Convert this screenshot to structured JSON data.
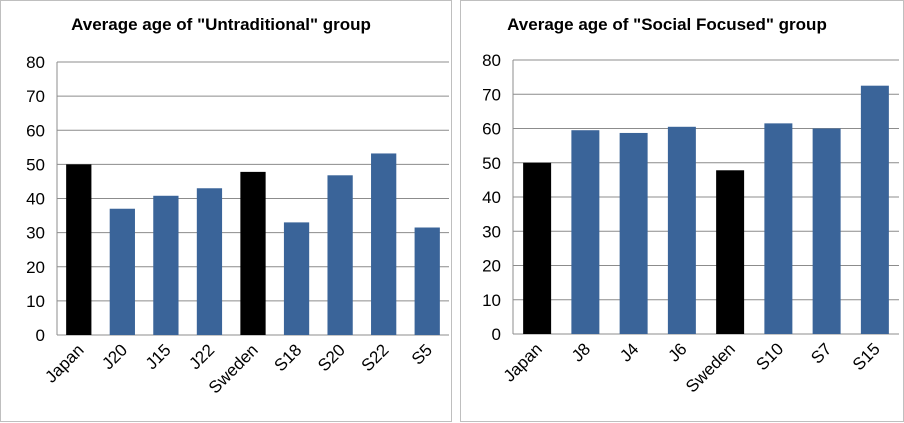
{
  "chart_data": [
    {
      "type": "bar",
      "title": "Average age of \"Untraditional\" group",
      "categories": [
        "Japan",
        "J20",
        "J15",
        "J22",
        "Sweden",
        "S18",
        "S20",
        "S22",
        "S5"
      ],
      "values": [
        50,
        37,
        40.8,
        43,
        47.8,
        33,
        46.8,
        53.2,
        31.5
      ],
      "bar_colors": [
        "#000000",
        "#3a6499",
        "#3a6499",
        "#3a6499",
        "#000000",
        "#3a6499",
        "#3a6499",
        "#3a6499",
        "#3a6499"
      ],
      "ylim": [
        0,
        80
      ],
      "yticks": [
        0,
        10,
        20,
        30,
        40,
        50,
        60,
        70,
        80
      ],
      "grid": true,
      "xlabel": "",
      "ylabel": ""
    },
    {
      "type": "bar",
      "title": "Average age of \"Social Focused\" group",
      "categories": [
        "Japan",
        "J8",
        "J4",
        "J6",
        "Sweden",
        "S10",
        "S7",
        "S15"
      ],
      "values": [
        50,
        59.5,
        58.7,
        60.5,
        47.8,
        61.5,
        60,
        72.5
      ],
      "bar_colors": [
        "#000000",
        "#3a6499",
        "#3a6499",
        "#3a6499",
        "#000000",
        "#3a6499",
        "#3a6499",
        "#3a6499"
      ],
      "ylim": [
        0,
        80
      ],
      "yticks": [
        0,
        10,
        20,
        30,
        40,
        50,
        60,
        70,
        80
      ],
      "grid": true,
      "xlabel": "",
      "ylabel": ""
    }
  ]
}
